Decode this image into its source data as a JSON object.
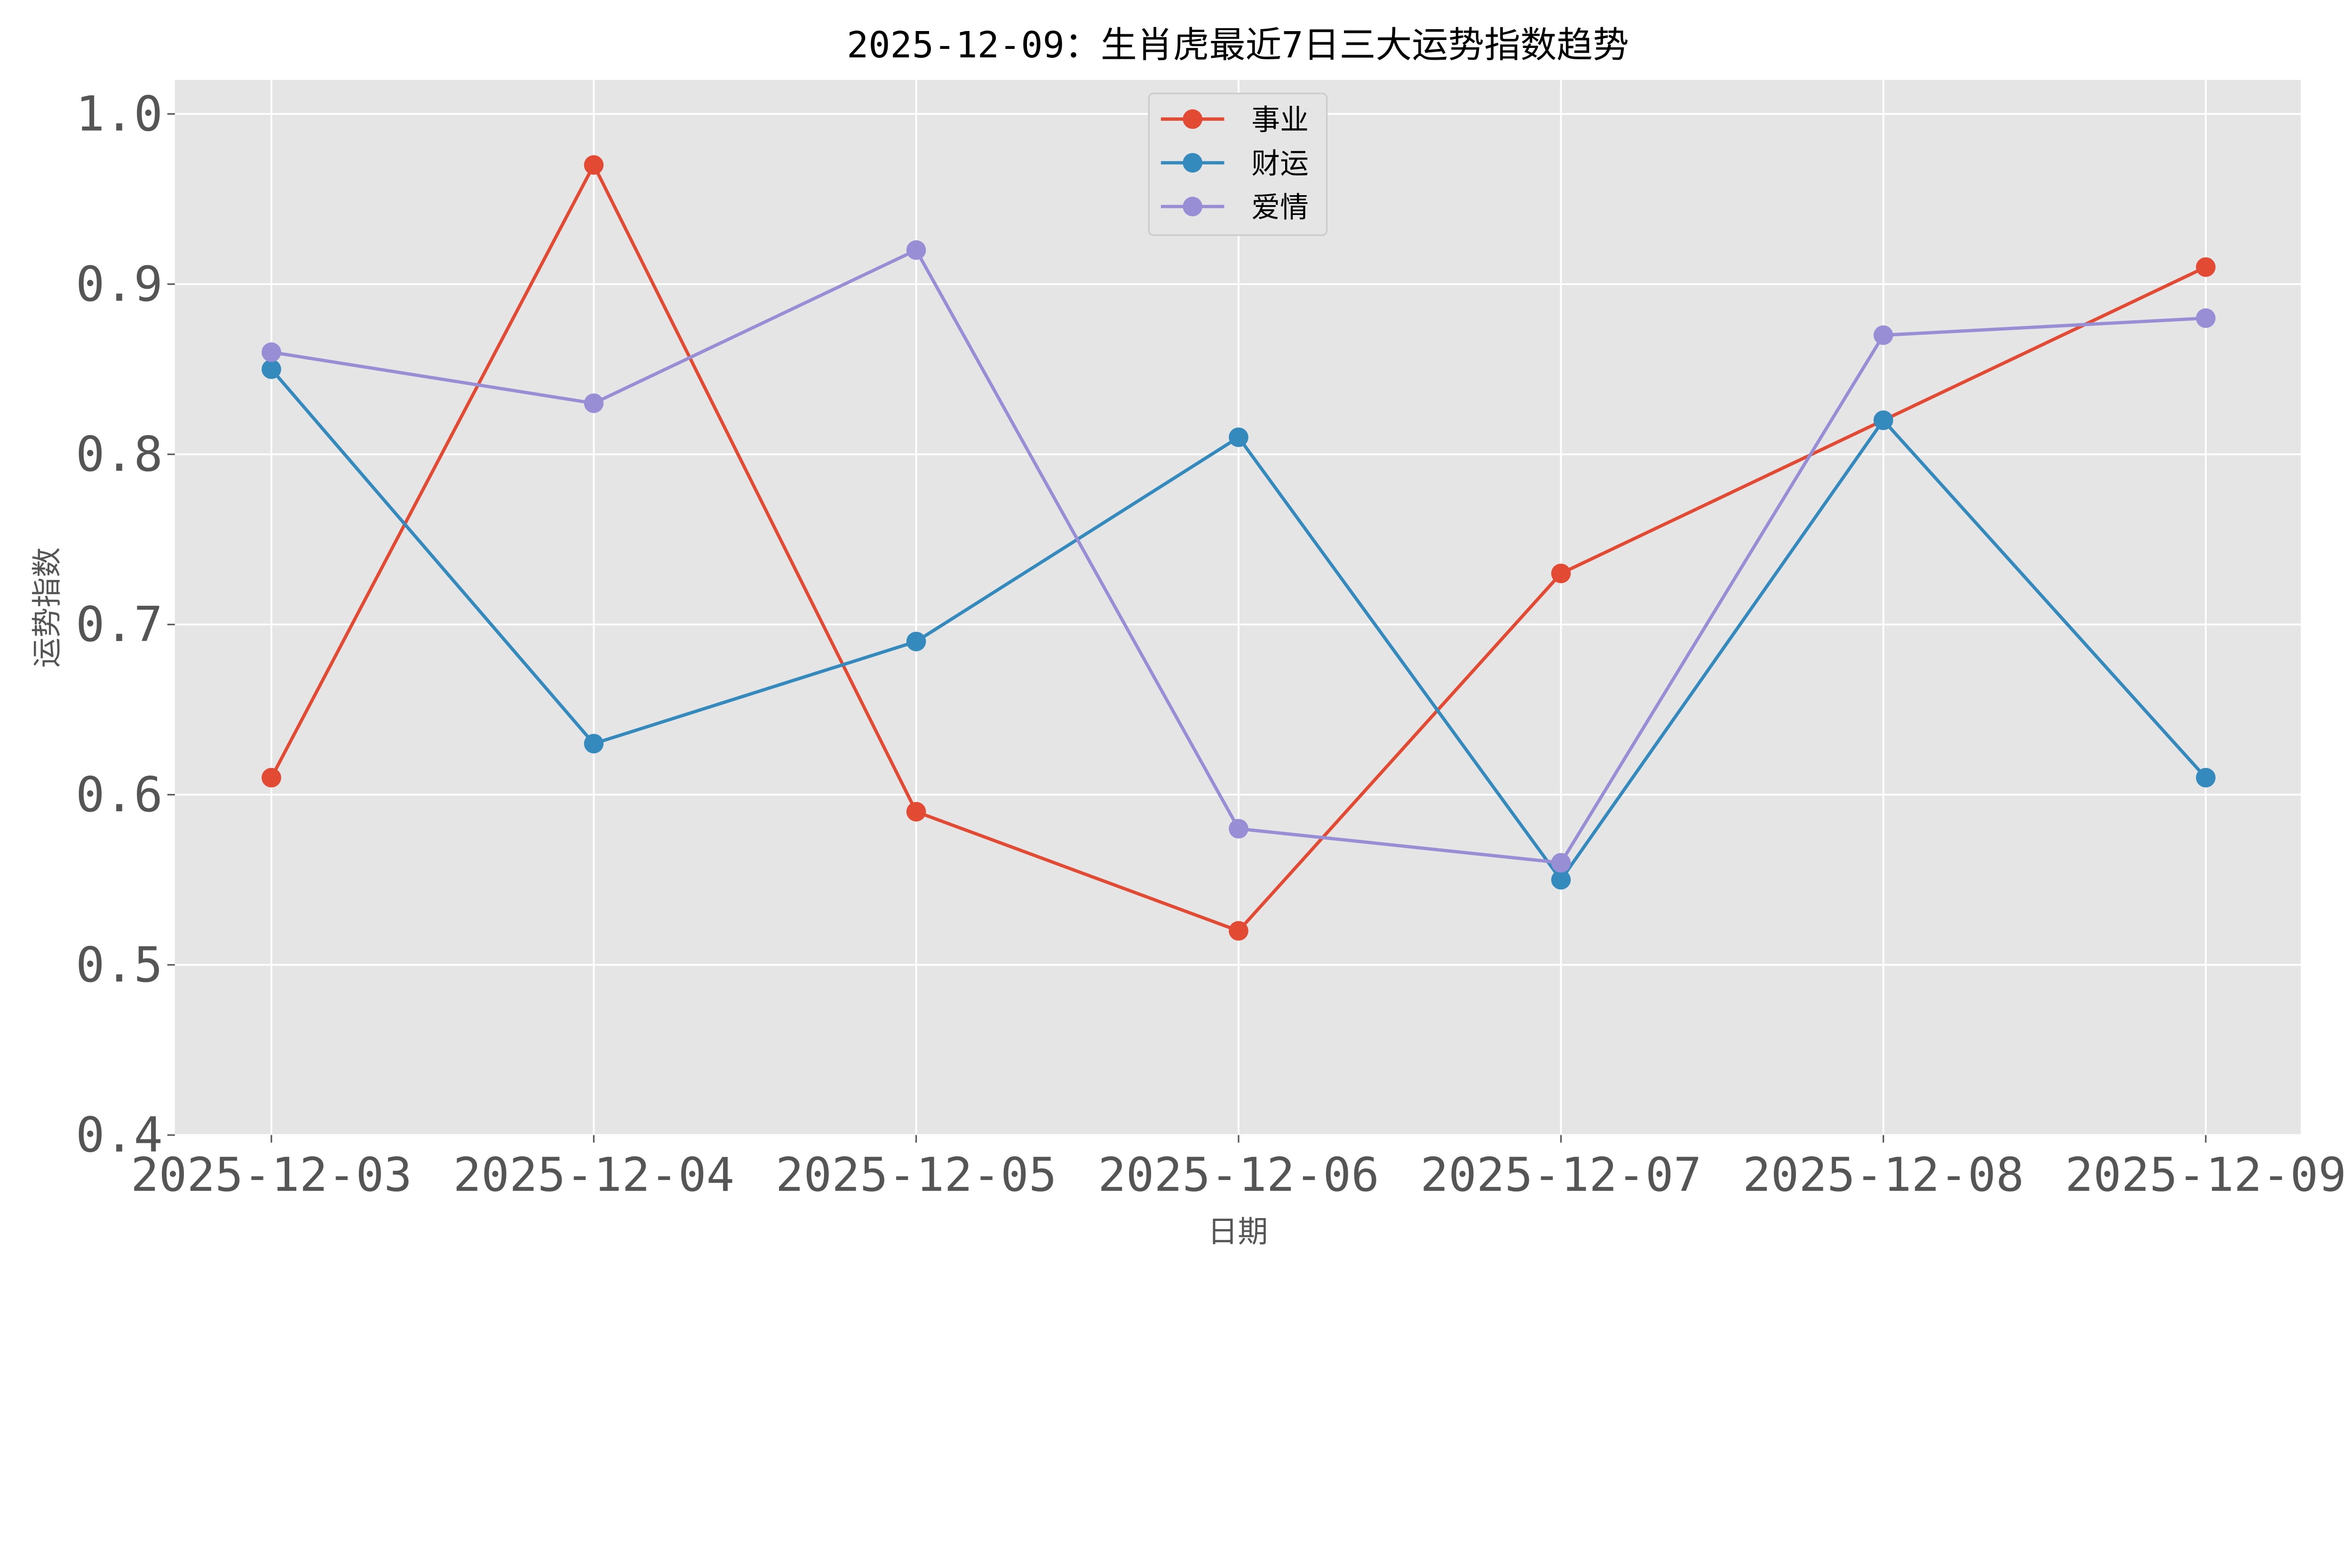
{
  "chart_data": {
    "type": "line",
    "title": "2025-12-09：生肖虎最近7日三大运势指数趋势",
    "xlabel": "日期",
    "ylabel": "运势指数",
    "categories": [
      "2025-12-03",
      "2025-12-04",
      "2025-12-05",
      "2025-12-06",
      "2025-12-07",
      "2025-12-08",
      "2025-12-09"
    ],
    "ylim": [
      0.4,
      1.02
    ],
    "yticks": [
      "0.4",
      "0.5",
      "0.6",
      "0.7",
      "0.8",
      "0.9",
      "1.0"
    ],
    "grid": true,
    "legend_position": "top-center",
    "background": "#e5e5e5",
    "series": [
      {
        "name": "事业",
        "color": "#e24a33",
        "marker": "circle",
        "values": [
          0.61,
          0.97,
          0.59,
          0.52,
          0.73,
          0.82,
          0.91
        ]
      },
      {
        "name": "财运",
        "color": "#348abd",
        "marker": "circle",
        "values": [
          0.85,
          0.63,
          0.69,
          0.81,
          0.55,
          0.82,
          0.61
        ]
      },
      {
        "name": "爱情",
        "color": "#988ed5",
        "marker": "circle",
        "values": [
          0.86,
          0.83,
          0.92,
          0.58,
          0.56,
          0.87,
          0.88
        ]
      }
    ]
  }
}
